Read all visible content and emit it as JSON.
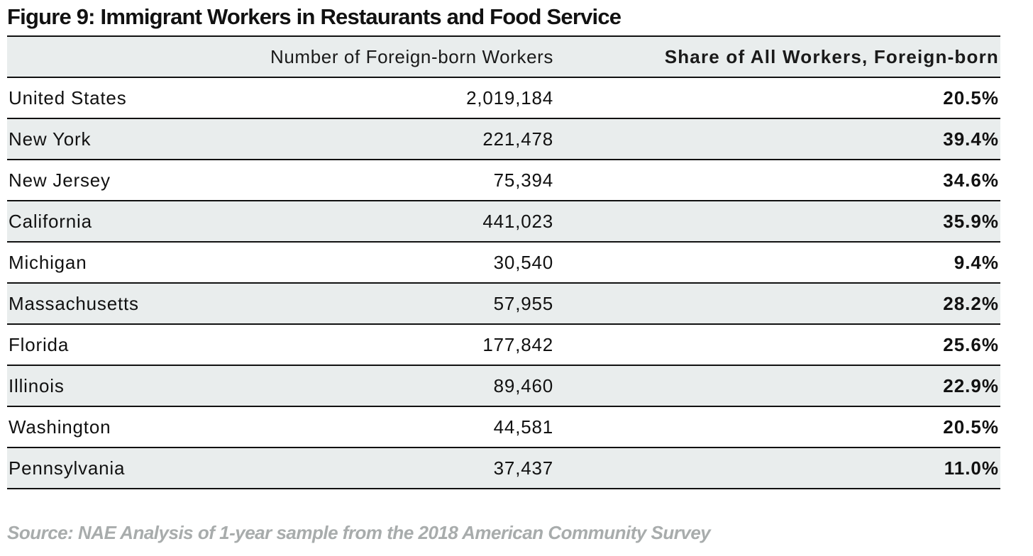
{
  "title": "Figure 9: Immigrant Workers in Restaurants and Food Service",
  "source": "Source: NAE Analysis of 1-year sample from the 2018 American Community Survey",
  "colors": {
    "shade": "#e9eded",
    "rule": "#111111",
    "source_text": "#a8acac"
  },
  "chart_data": {
    "type": "table",
    "title": "Figure 9: Immigrant Workers in Restaurants and Food Service",
    "columns": [
      "",
      "Number of Foreign-born Workers",
      "Share of All Workers, Foreign-born"
    ],
    "rows": [
      {
        "state": "United States",
        "number": "2,019,184",
        "share": "20.5%"
      },
      {
        "state": "New York",
        "number": "221,478",
        "share": "39.4%"
      },
      {
        "state": "New Jersey",
        "number": "75,394",
        "share": "34.6%"
      },
      {
        "state": "California",
        "number": "441,023",
        "share": "35.9%"
      },
      {
        "state": "Michigan",
        "number": "30,540",
        "share": "9.4%"
      },
      {
        "state": "Massachusetts",
        "number": "57,955",
        "share": "28.2%"
      },
      {
        "state": "Florida",
        "number": "177,842",
        "share": "25.6%"
      },
      {
        "state": "Illinois",
        "number": "89,460",
        "share": "22.9%"
      },
      {
        "state": "Washington",
        "number": "44,581",
        "share": "20.5%"
      },
      {
        "state": "Pennsylvania",
        "number": "37,437",
        "share": "11.0%"
      }
    ]
  }
}
